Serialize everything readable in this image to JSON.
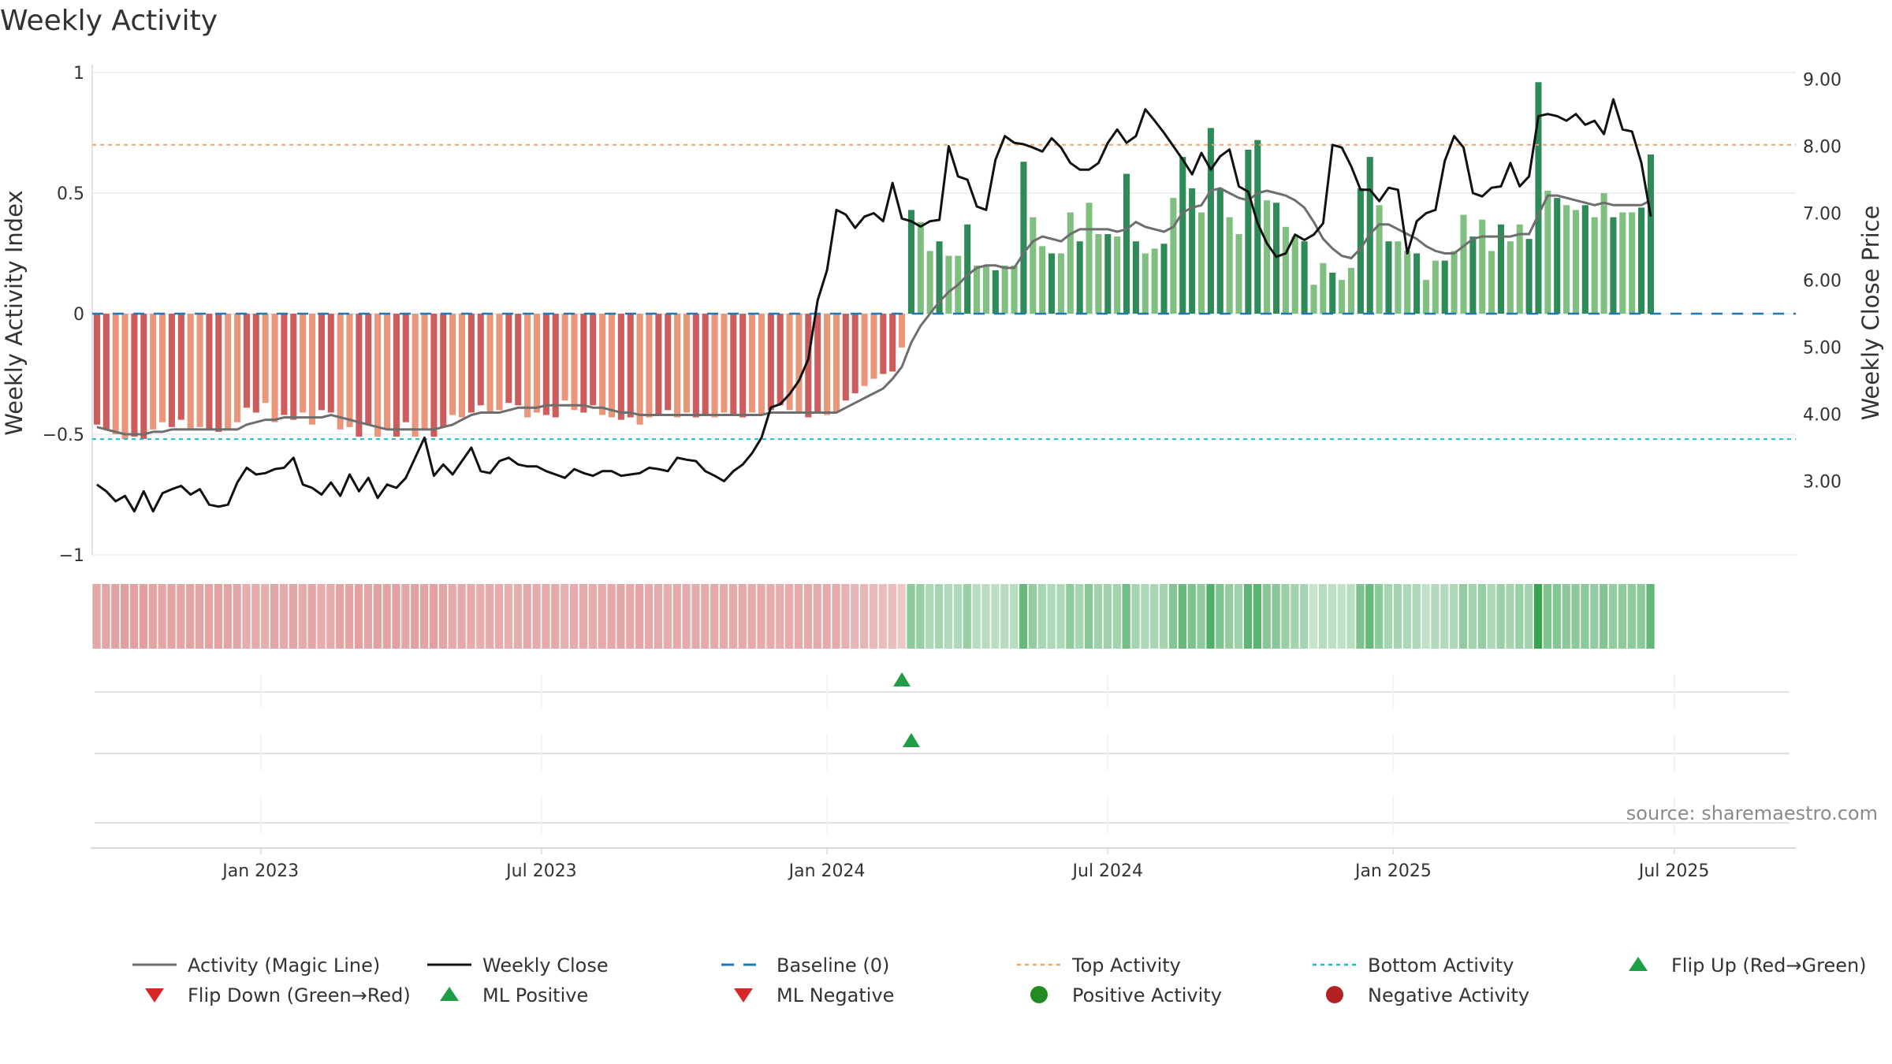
{
  "chart_data": {
    "type": "bar",
    "title": "Weekly Activity",
    "ylabel": "Weekly Activity Index",
    "y2label": "Weekly Close Price",
    "ylim": [
      -1,
      1
    ],
    "y2lim": [
      1.9,
      9.1
    ],
    "y_ticks": [
      {
        "v": 1,
        "label": "1"
      },
      {
        "v": 0.5,
        "label": "0.5"
      },
      {
        "v": 0,
        "label": "0"
      },
      {
        "v": -0.5,
        "label": "−0.5"
      },
      {
        "v": -1,
        "label": "−1"
      }
    ],
    "y2_ticks": [
      {
        "v": 9,
        "label": "9.00"
      },
      {
        "v": 8,
        "label": "8.00"
      },
      {
        "v": 7,
        "label": "7.00"
      },
      {
        "v": 6,
        "label": "6.00"
      },
      {
        "v": 5,
        "label": "5.00"
      },
      {
        "v": 4,
        "label": "4.00"
      },
      {
        "v": 3,
        "label": "3.00"
      }
    ],
    "x_ticks": [
      {
        "week": 17.5,
        "label": "Jan 2023"
      },
      {
        "week": 47.5,
        "label": "Jul 2023"
      },
      {
        "week": 78,
        "label": "Jan 2024"
      },
      {
        "week": 108,
        "label": "Jul 2024"
      },
      {
        "week": 138.5,
        "label": "Jan 2025"
      },
      {
        "week": 168.5,
        "label": "Jul 2025"
      }
    ],
    "weeks": 182,
    "activity": [
      -0.46,
      -0.48,
      -0.5,
      -0.52,
      -0.51,
      -0.52,
      -0.48,
      -0.45,
      -0.47,
      -0.44,
      -0.48,
      -0.47,
      -0.48,
      -0.49,
      -0.48,
      -0.45,
      -0.39,
      -0.41,
      -0.37,
      -0.45,
      -0.42,
      -0.44,
      -0.41,
      -0.46,
      -0.4,
      -0.41,
      -0.48,
      -0.47,
      -0.51,
      -0.46,
      -0.51,
      -0.48,
      -0.51,
      -0.45,
      -0.51,
      -0.48,
      -0.51,
      -0.47,
      -0.42,
      -0.43,
      -0.41,
      -0.38,
      -0.41,
      -0.4,
      -0.37,
      -0.38,
      -0.43,
      -0.41,
      -0.42,
      -0.43,
      -0.36,
      -0.4,
      -0.41,
      -0.38,
      -0.42,
      -0.43,
      -0.44,
      -0.43,
      -0.46,
      -0.43,
      -0.42,
      -0.4,
      -0.43,
      -0.41,
      -0.43,
      -0.42,
      -0.43,
      -0.41,
      -0.42,
      -0.43,
      -0.41,
      -0.42,
      -0.4,
      -0.38,
      -0.4,
      -0.41,
      -0.43,
      -0.41,
      -0.42,
      -0.41,
      -0.36,
      -0.33,
      -0.3,
      -0.27,
      -0.25,
      -0.24,
      -0.14,
      0.43,
      0.38,
      0.26,
      0.3,
      0.24,
      0.24,
      0.37,
      0.2,
      0.2,
      0.18,
      0.2,
      0.2,
      0.63,
      0.4,
      0.28,
      0.25,
      0.25,
      0.42,
      0.3,
      0.46,
      0.33,
      0.33,
      0.32,
      0.58,
      0.3,
      0.25,
      0.27,
      0.29,
      0.48,
      0.65,
      0.52,
      0.42,
      0.77,
      0.52,
      0.4,
      0.33,
      0.68,
      0.72,
      0.47,
      0.46,
      0.36,
      0.32,
      0.3,
      0.12,
      0.21,
      0.17,
      0.14,
      0.19,
      0.52,
      0.65,
      0.45,
      0.3,
      0.3,
      0.26,
      0.25,
      0.14,
      0.22,
      0.22,
      0.26,
      0.41,
      0.32,
      0.39,
      0.26,
      0.37,
      0.3,
      0.37,
      0.31,
      0.96,
      0.51,
      0.48,
      0.45,
      0.43,
      0.45,
      0.4,
      0.5,
      0.4,
      0.42,
      0.42,
      0.44,
      0.66
    ],
    "magic_line": [
      -0.47,
      -0.48,
      -0.49,
      -0.5,
      -0.5,
      -0.5,
      -0.49,
      -0.49,
      -0.48,
      -0.48,
      -0.48,
      -0.48,
      -0.48,
      -0.48,
      -0.48,
      -0.48,
      -0.46,
      -0.45,
      -0.44,
      -0.44,
      -0.43,
      -0.43,
      -0.43,
      -0.43,
      -0.43,
      -0.42,
      -0.43,
      -0.44,
      -0.45,
      -0.46,
      -0.47,
      -0.48,
      -0.48,
      -0.48,
      -0.48,
      -0.48,
      -0.48,
      -0.47,
      -0.46,
      -0.44,
      -0.42,
      -0.41,
      -0.41,
      -0.41,
      -0.4,
      -0.39,
      -0.39,
      -0.39,
      -0.38,
      -0.38,
      -0.38,
      -0.38,
      -0.38,
      -0.39,
      -0.39,
      -0.4,
      -0.41,
      -0.41,
      -0.42,
      -0.42,
      -0.42,
      -0.42,
      -0.42,
      -0.42,
      -0.42,
      -0.42,
      -0.42,
      -0.42,
      -0.42,
      -0.42,
      -0.42,
      -0.42,
      -0.41,
      -0.41,
      -0.41,
      -0.41,
      -0.41,
      -0.41,
      -0.41,
      -0.41,
      -0.39,
      -0.37,
      -0.35,
      -0.33,
      -0.31,
      -0.27,
      -0.22,
      -0.12,
      -0.05,
      0.0,
      0.05,
      0.09,
      0.12,
      0.16,
      0.19,
      0.2,
      0.2,
      0.19,
      0.19,
      0.25,
      0.3,
      0.32,
      0.31,
      0.3,
      0.33,
      0.35,
      0.35,
      0.35,
      0.35,
      0.34,
      0.35,
      0.38,
      0.36,
      0.35,
      0.34,
      0.36,
      0.42,
      0.44,
      0.45,
      0.51,
      0.52,
      0.5,
      0.48,
      0.47,
      0.5,
      0.51,
      0.5,
      0.49,
      0.47,
      0.44,
      0.38,
      0.31,
      0.27,
      0.24,
      0.23,
      0.27,
      0.33,
      0.37,
      0.37,
      0.35,
      0.33,
      0.31,
      0.28,
      0.26,
      0.25,
      0.25,
      0.28,
      0.31,
      0.32,
      0.32,
      0.32,
      0.32,
      0.33,
      0.33,
      0.41,
      0.49,
      0.49,
      0.48,
      0.47,
      0.46,
      0.45,
      0.46,
      0.45,
      0.45,
      0.45,
      0.45,
      0.47
    ],
    "weekly_close": [
      2.95,
      2.85,
      2.7,
      2.78,
      2.55,
      2.85,
      2.55,
      2.82,
      2.88,
      2.93,
      2.8,
      2.88,
      2.65,
      2.62,
      2.65,
      2.98,
      3.2,
      3.1,
      3.12,
      3.18,
      3.2,
      3.35,
      2.95,
      2.9,
      2.8,
      2.98,
      2.78,
      3.1,
      2.85,
      3.05,
      2.75,
      2.95,
      2.9,
      3.05,
      3.35,
      3.65,
      3.08,
      3.25,
      3.1,
      3.3,
      3.5,
      3.15,
      3.12,
      3.3,
      3.35,
      3.25,
      3.22,
      3.22,
      3.15,
      3.1,
      3.05,
      3.18,
      3.12,
      3.08,
      3.15,
      3.15,
      3.08,
      3.1,
      3.12,
      3.2,
      3.18,
      3.15,
      3.35,
      3.32,
      3.3,
      3.15,
      3.08,
      3.0,
      3.15,
      3.25,
      3.42,
      3.65,
      4.1,
      4.15,
      4.3,
      4.5,
      4.82,
      5.7,
      6.15,
      7.05,
      6.98,
      6.78,
      6.95,
      7.0,
      6.88,
      7.45,
      6.92,
      6.88,
      6.8,
      6.88,
      6.9,
      8.0,
      7.55,
      7.5,
      7.1,
      7.05,
      7.8,
      8.15,
      8.05,
      8.03,
      7.98,
      7.92,
      8.12,
      7.98,
      7.75,
      7.65,
      7.65,
      7.75,
      8.05,
      8.25,
      8.05,
      8.15,
      8.55,
      8.38,
      8.2,
      8.0,
      7.8,
      7.58,
      7.9,
      7.65,
      7.85,
      7.95,
      7.4,
      7.32,
      6.85,
      6.55,
      6.35,
      6.4,
      6.68,
      6.6,
      6.68,
      6.85,
      8.02,
      7.98,
      7.7,
      7.35,
      7.35,
      7.18,
      7.38,
      7.35,
      6.4,
      6.88,
      7.0,
      7.05,
      7.78,
      8.15,
      7.98,
      7.3,
      7.25,
      7.38,
      7.4,
      7.75,
      7.4,
      7.55,
      8.45,
      8.48,
      8.45,
      8.38,
      8.48,
      8.32,
      8.38,
      8.18,
      8.7,
      8.25,
      8.22,
      7.75,
      6.95
    ]
  },
  "thresholds": {
    "baseline_value": 0,
    "top_activity_value": 0.7,
    "bottom_activity_value": -0.52
  },
  "markers": {
    "flip_up_week": 86,
    "ml_positive_week": 87
  },
  "source": "source: sharemaestro.com",
  "legend": [
    {
      "key": "magic",
      "label": "Activity (Magic Line)"
    },
    {
      "key": "close",
      "label": "Weekly Close"
    },
    {
      "key": "baseline",
      "label": "Baseline (0)"
    },
    {
      "key": "top",
      "label": "Top Activity"
    },
    {
      "key": "bottom",
      "label": "Bottom Activity"
    },
    {
      "key": "flipup",
      "label": "Flip Up (Red→Green)"
    },
    {
      "key": "flipdown",
      "label": "Flip Down (Green→Red)"
    },
    {
      "key": "mlpos",
      "label": "ML Positive"
    },
    {
      "key": "mlneg",
      "label": "ML Negative"
    },
    {
      "key": "posact",
      "label": "Positive Activity"
    },
    {
      "key": "negact",
      "label": "Negative Activity"
    }
  ],
  "colors": {
    "neg_strong": "#cd5c5c",
    "neg_light": "#e9967a",
    "pos_strong": "#2e8b57",
    "pos_light": "#7fbf7f",
    "magic_line": "#6e6e6e",
    "close_line": "#111111",
    "baseline": "#1f77b4",
    "top": "#f4a460",
    "bottom": "#17becf",
    "marker_up": "#1f9e45",
    "marker_down": "#d62728",
    "pos_dot": "#228b22",
    "neg_dot": "#b22222",
    "grid": "#e6e6e6",
    "axis": "#d9d9d9"
  }
}
